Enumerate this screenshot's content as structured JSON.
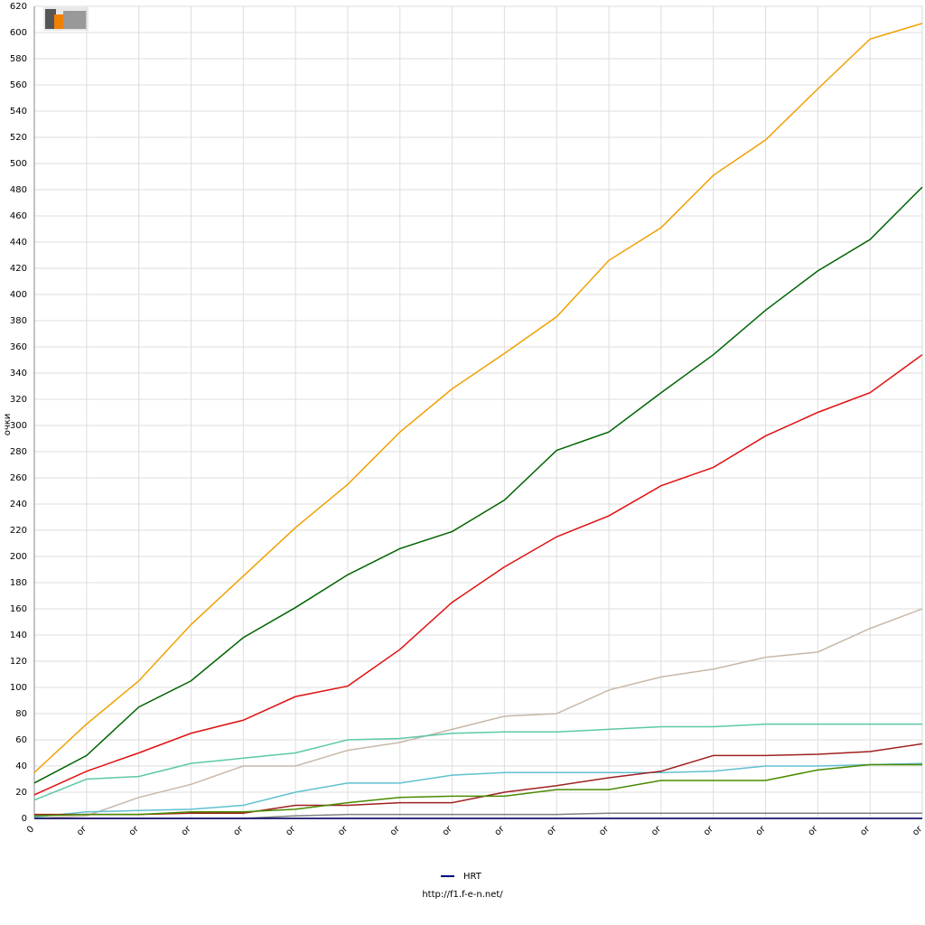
{
  "chart_data": {
    "type": "line",
    "y_label": "очки",
    "source": "http://f1.f-e-n.net/",
    "categories": [
      "0",
      "or",
      "or",
      "or",
      "or",
      "or",
      "or",
      "or",
      "or",
      "or",
      "or",
      "or",
      "or",
      "or",
      "or",
      "or",
      "or",
      "or"
    ],
    "ylim": [
      0,
      620
    ],
    "yticks": [
      0,
      20,
      40,
      60,
      80,
      100,
      120,
      140,
      160,
      180,
      200,
      220,
      240,
      260,
      280,
      300,
      320,
      340,
      360,
      380,
      400,
      420,
      440,
      460,
      480,
      500,
      520,
      540,
      560,
      580,
      600,
      620
    ],
    "grid": true,
    "series": [
      {
        "color": "#f0a000",
        "values": [
          35,
          72,
          105,
          148,
          185,
          222,
          255,
          295,
          328,
          355,
          383,
          426,
          451,
          491,
          518,
          557,
          595,
          607
        ]
      },
      {
        "color": "#006400",
        "values": [
          27,
          48,
          85,
          105,
          138,
          161,
          186,
          206,
          219,
          243,
          281,
          295,
          325,
          354,
          388,
          418,
          442,
          482
        ]
      },
      {
        "color": "#e01010",
        "values": [
          18,
          36,
          50,
          65,
          75,
          93,
          101,
          129,
          165,
          192,
          215,
          231,
          254,
          268,
          292,
          310,
          325,
          354
        ]
      },
      {
        "color": "#c8b8a8",
        "values": [
          0,
          2,
          16,
          26,
          40,
          40,
          52,
          58,
          68,
          78,
          80,
          98,
          108,
          114,
          123,
          127,
          145,
          160
        ]
      },
      {
        "color": "#5cc8a8",
        "values": [
          14,
          30,
          32,
          42,
          46,
          50,
          60,
          61,
          65,
          66,
          66,
          68,
          70,
          70,
          72,
          72,
          72,
          72
        ]
      },
      {
        "color": "#60c0d0",
        "values": [
          1,
          5,
          6,
          7,
          10,
          20,
          27,
          27,
          33,
          35,
          35,
          35,
          35,
          36,
          40,
          40,
          41,
          42
        ]
      },
      {
        "color": "#a02020",
        "values": [
          3,
          3,
          3,
          4,
          4,
          10,
          10,
          12,
          12,
          20,
          25,
          31,
          36,
          48,
          48,
          49,
          51,
          57
        ]
      },
      {
        "color": "#4a8a00",
        "values": [
          2,
          3,
          3,
          5,
          5,
          7,
          12,
          16,
          17,
          17,
          22,
          22,
          29,
          29,
          29,
          37,
          41,
          41
        ]
      },
      {
        "color": "#808080",
        "values": [
          0,
          0,
          0,
          0,
          0,
          2,
          3,
          3,
          3,
          3,
          3,
          4,
          4,
          4,
          4,
          4,
          4,
          4
        ]
      },
      {
        "color": "#b08000",
        "values": [
          0,
          0,
          0,
          0,
          0,
          0,
          0,
          0,
          0,
          0,
          0,
          0,
          0,
          0,
          0,
          0,
          0,
          0
        ]
      },
      {
        "name": "HRT",
        "color": "#000080",
        "values": [
          0,
          0,
          0,
          0,
          0,
          0,
          0,
          0,
          0,
          0,
          0,
          0,
          0,
          0,
          0,
          0,
          0,
          0
        ]
      }
    ]
  }
}
